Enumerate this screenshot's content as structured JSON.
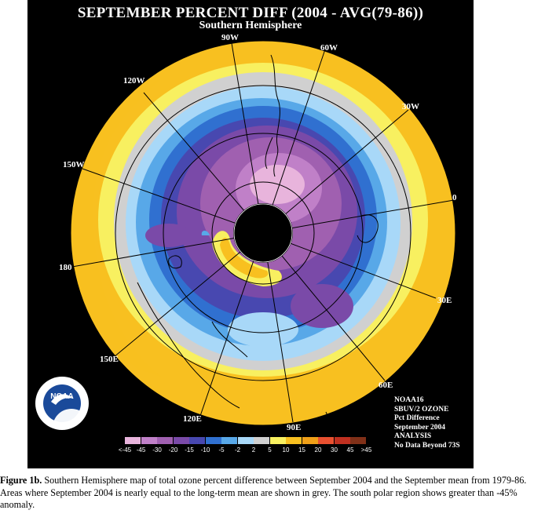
{
  "map": {
    "title": "SEPTEMBER PERCENT DIFF (2004 - AVG(79-86))",
    "subtitle": "Southern Hemisphere",
    "longitude_labels": [
      "90W",
      "60W",
      "30W",
      "0",
      "30E",
      "60E",
      "90E",
      "120E",
      "150E",
      "180",
      "150W",
      "120W"
    ]
  },
  "info": {
    "lines": [
      "NOAA16",
      "SBUV/2 OZONE",
      "Pct Difference",
      "September 2004",
      "ANALYSIS",
      "No Data Beyond 73S"
    ]
  },
  "logo": {
    "text": "NOAA",
    "ring_top": "NATIONAL OCEANIC AND ATMOSPHERIC ADMINISTRATION",
    "ring_bottom": "U.S. DEPARTMENT OF COMMERCE"
  },
  "scale": {
    "labels": [
      "<-45",
      "-45",
      "-30",
      "-20",
      "-15",
      "-10",
      "-5",
      "-2",
      "2",
      "5",
      "10",
      "15",
      "20",
      "30",
      "45",
      ">45"
    ],
    "colors": [
      "#e8b4dc",
      "#c080c8",
      "#a060b0",
      "#7a4aa8",
      "#4848b0",
      "#3070d0",
      "#58a8e8",
      "#a8d8f8",
      "#d0d0d0",
      "#f8f060",
      "#f8c020",
      "#f0a018",
      "#e85030",
      "#c03020",
      "#803018"
    ]
  },
  "caption": {
    "label": "Figure 1b.",
    "text": " Southern Hemisphere map of total ozone percent difference between September 2004 and the September mean from 1979-86.  Areas where September 2004 is nearly equal to the long-term mean are shown in grey.  The south polar region shows greater than -45% anomaly."
  }
}
